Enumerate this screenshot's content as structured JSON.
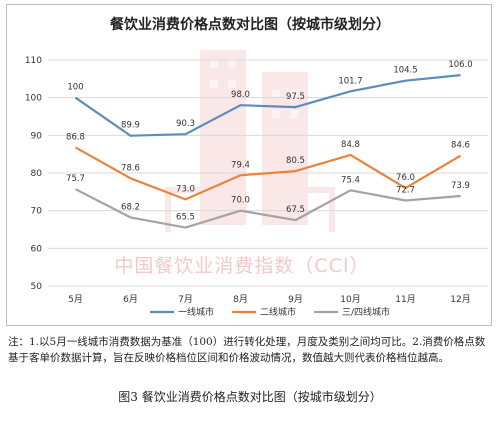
{
  "watermark": "中国餐饮业消费指数（CCI）",
  "note": "注：1.以5月一线城市消费数据为基准（100）进行转化处理，月度及类别之间均可比。2.消费价格点数基于客单价数据计算，旨在反映价格档位区间和价格波动情况，数值越大则代表价格档位越高。",
  "caption": "图3 餐饮业消费价格点数对比图（按城市级划分）",
  "chart_data": {
    "type": "line",
    "title": "餐饮业消费价格点数对比图（按城市级划分）",
    "xlabel": "",
    "ylabel": "",
    "categories": [
      "5月",
      "6月",
      "7月",
      "8月",
      "9月",
      "10月",
      "11月",
      "12月"
    ],
    "ylim": [
      50,
      110
    ],
    "yticks": [
      50,
      60,
      70,
      80,
      90,
      100,
      110
    ],
    "grid": true,
    "legend_position": "bottom",
    "series": [
      {
        "name": "一线城市",
        "color": "#5b8dbd",
        "values": [
          100,
          89.9,
          90.3,
          98.0,
          97.5,
          101.7,
          104.5,
          106.0
        ],
        "labels": [
          "100",
          "89.9",
          "90.3",
          "98.0",
          "97.5",
          "101.7",
          "104.5",
          "106.0"
        ]
      },
      {
        "name": "二线城市",
        "color": "#e8843c",
        "values": [
          86.8,
          78.6,
          73.0,
          79.4,
          80.5,
          84.8,
          76.0,
          84.6
        ],
        "labels": [
          "86.8",
          "78.6",
          "73.0",
          "79.4",
          "80.5",
          "84.8",
          "76.0",
          "84.6"
        ]
      },
      {
        "name": "三/四线城市",
        "color": "#a3a3a3",
        "values": [
          75.7,
          68.2,
          65.5,
          70.0,
          67.5,
          75.4,
          72.7,
          73.9
        ],
        "labels": [
          "75.7",
          "68.2",
          "65.5",
          "70.0",
          "67.5",
          "75.4",
          "72.7",
          "73.9"
        ]
      }
    ]
  }
}
